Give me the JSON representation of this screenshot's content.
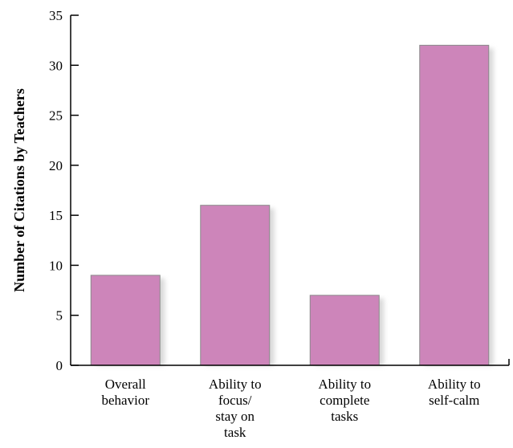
{
  "chart_data": {
    "type": "bar",
    "title": "",
    "xlabel": "",
    "ylabel": "Number of Citations by Teachers",
    "ylim": [
      0,
      35
    ],
    "yticks": [
      0,
      5,
      10,
      15,
      20,
      25,
      30,
      35
    ],
    "grid": false,
    "legend": "none",
    "categories": [
      "Overall behavior",
      "Ability to focus/ stay on task",
      "Ability to complete tasks",
      "Ability to self-calm"
    ],
    "category_lines": [
      [
        "Overall",
        "behavior"
      ],
      [
        "Ability to",
        "focus/",
        "stay on",
        "task"
      ],
      [
        "Ability to",
        "complete",
        "tasks"
      ],
      [
        "Ability to",
        "self-calm"
      ]
    ],
    "values": [
      9,
      16,
      7,
      32
    ],
    "bar_color": "#cd85ba",
    "bar_edge_color": "#8a8a8a",
    "shadow_color": "#d9d9d9"
  }
}
